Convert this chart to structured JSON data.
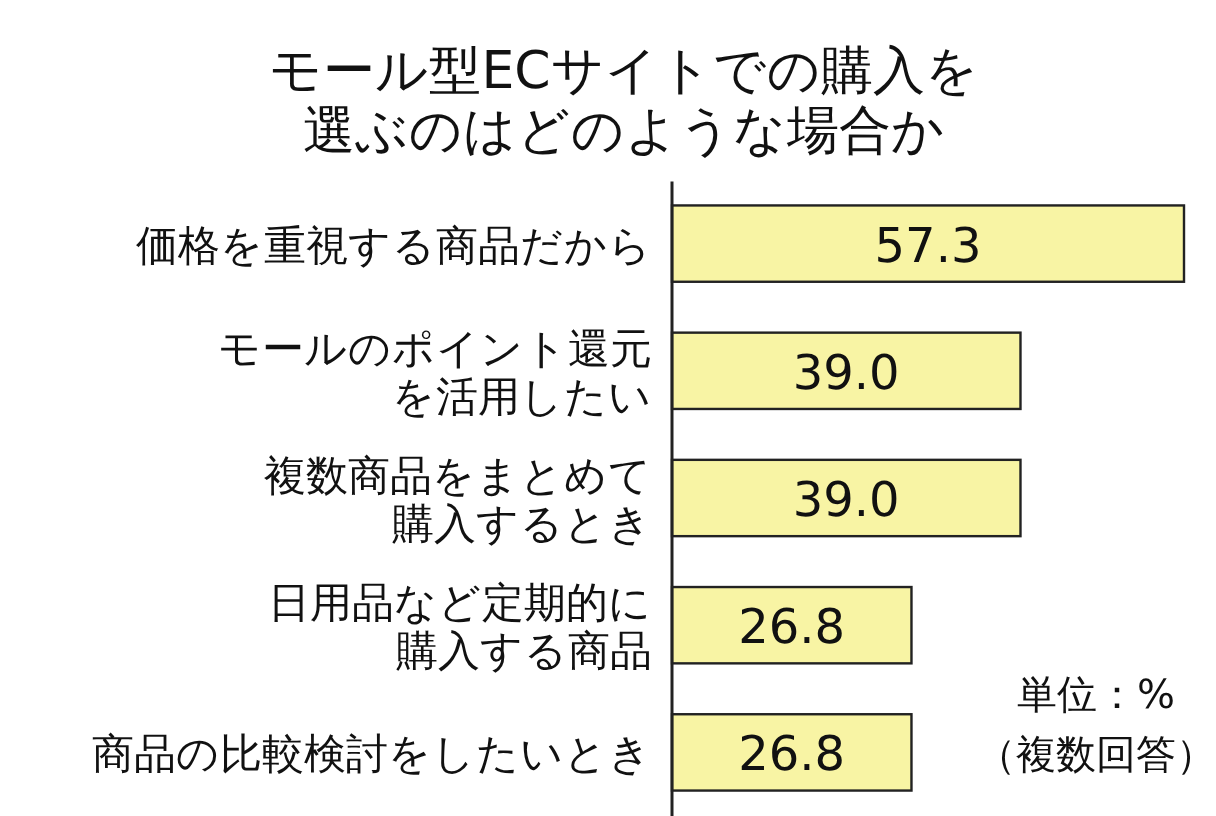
{
  "chart_data": {
    "type": "bar",
    "orientation": "horizontal",
    "title": "モール型ECサイトでの購入を選ぶのはどのような場合か",
    "categories": [
      "価格を重視する商品だから",
      "モールのポイント還元を活用したい",
      "複数商品をまとめて購入するとき",
      "日用品など定期的に購入する商品",
      "商品の比較検討をしたいとき"
    ],
    "values": [
      57.3,
      39.0,
      39.0,
      26.8,
      26.8
    ],
    "value_labels": [
      "57.3",
      "39.0",
      "39.0",
      "26.8",
      "26.8"
    ],
    "color": "#f8f4a4",
    "annotations": [
      "単位：%（複数回答）"
    ]
  }
}
